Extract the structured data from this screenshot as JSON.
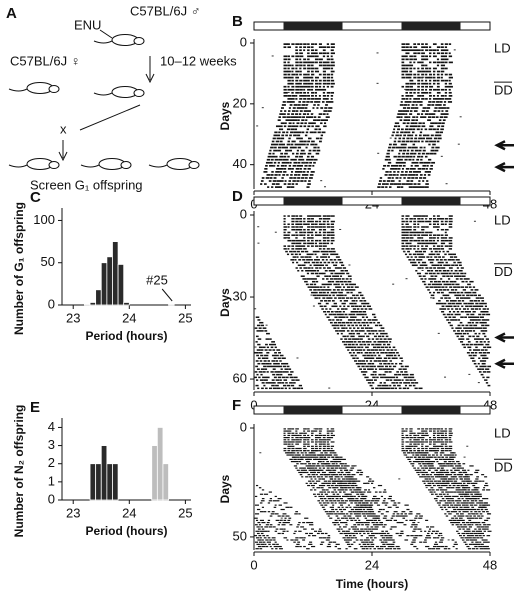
{
  "diagram": {
    "panel": "A",
    "enu": "ENU",
    "male": "C57BL/6J ♂",
    "female": "C57BL/6J ♀",
    "weeks": "10–12 weeks",
    "cross": "x",
    "screen": "Screen G₁ offspring"
  },
  "chart_data": [
    {
      "type": "actogram",
      "panel": "B",
      "ylabel": "Days",
      "ylim": [
        0,
        48
      ],
      "yticks": [
        0,
        20,
        40
      ],
      "xlim": [
        0,
        48
      ],
      "xticks": [
        0,
        24,
        48
      ],
      "annotations": [
        "LD",
        "DD"
      ]
    },
    {
      "type": "histogram",
      "panel": "C",
      "ylabel": "Number of G₁ offspring",
      "xlabel": "Period (hours)",
      "annotation": "#25",
      "bins": [
        23.2,
        23.3,
        23.4,
        23.5,
        23.6,
        23.7,
        23.8,
        23.9,
        24.0,
        24.1,
        24.2,
        24.3,
        24.4,
        24.5,
        24.6,
        24.7,
        24.8,
        24.9
      ],
      "series": [
        {
          "color": "#2a2a2a",
          "values": [
            1,
            3,
            18,
            50,
            57,
            75,
            48,
            3,
            0,
            0,
            0,
            0,
            0,
            0,
            0,
            1,
            0
          ]
        }
      ],
      "xlim": [
        22.8,
        25.1
      ],
      "xticks": [
        23,
        24,
        25
      ],
      "ylim": [
        0,
        110
      ],
      "yticks": [
        0,
        50,
        100
      ]
    },
    {
      "type": "actogram",
      "panel": "D",
      "ylabel": "Days",
      "ylim": [
        0,
        64
      ],
      "yticks": [
        0,
        30,
        60
      ],
      "xlim": [
        0,
        48
      ],
      "xticks": [
        0,
        24,
        48
      ],
      "annotations": [
        "LD",
        "DD"
      ]
    },
    {
      "type": "histogram",
      "panel": "E",
      "ylabel": "Number of N₂ offspring",
      "xlabel": "Period (hours)",
      "bins": [
        23.3,
        23.4,
        23.5,
        23.6,
        23.7,
        23.8,
        23.9,
        24.0,
        24.1,
        24.2,
        24.3,
        24.4,
        24.5,
        24.6,
        24.7,
        24.8
      ],
      "series": [
        {
          "color": "#2a2a2a",
          "values": [
            2,
            2,
            3,
            2,
            2,
            0,
            0,
            0,
            0,
            0,
            0,
            0,
            0,
            0,
            0
          ]
        },
        {
          "color": "#bdbdbd",
          "values": [
            0,
            0,
            0,
            0,
            0,
            0,
            0,
            0,
            0,
            0,
            0,
            3,
            4,
            2,
            0
          ]
        }
      ],
      "xlim": [
        22.8,
        25.1
      ],
      "xticks": [
        23,
        24,
        25
      ],
      "ylim": [
        0,
        4.3
      ],
      "yticks": [
        0,
        1,
        2,
        3,
        4
      ]
    },
    {
      "type": "actogram",
      "panel": "F",
      "ylabel": "Days",
      "xlabel": "Time (hours)",
      "ylim": [
        0,
        56
      ],
      "yticks": [
        0,
        50
      ],
      "xlim": [
        0,
        48
      ],
      "xticks": [
        0,
        24,
        48
      ],
      "annotations": [
        "LD",
        "DD"
      ]
    }
  ]
}
